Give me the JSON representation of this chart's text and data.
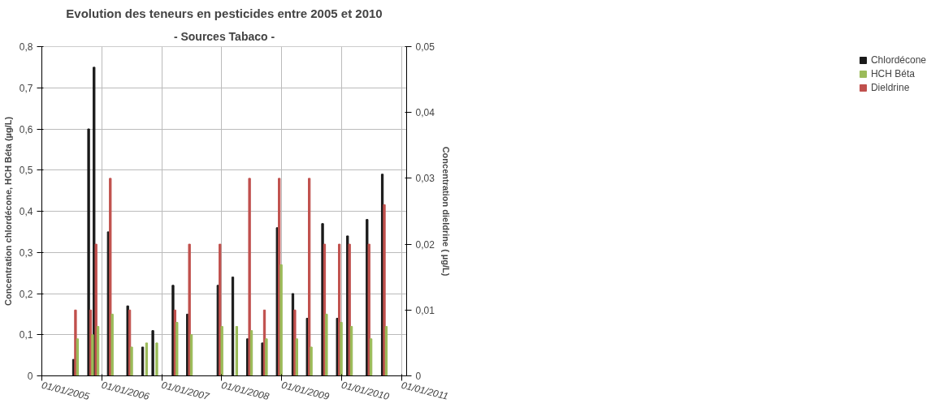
{
  "chart_data": {
    "type": "bar",
    "title": "Evolution des teneurs en pesticides entre 2005 et 2010",
    "subtitle": "- Sources Tabaco -",
    "ylabel": "Concentration chlordécone, HCH Béta (µg/L)",
    "y2label": "Concentration dieldrine ( µg/L)",
    "x": [
      "2005-07-25",
      "2005-10-25",
      "2005-11-27",
      "2006-02-22",
      "2006-06-20",
      "2006-09-19",
      "2006-11-20",
      "2007-03-23",
      "2007-06-19",
      "2007-12-22",
      "2008-03-21",
      "2008-06-19",
      "2008-09-18",
      "2008-12-17",
      "2009-03-22",
      "2009-06-18",
      "2009-09-19",
      "2009-12-18",
      "2010-02-18",
      "2010-06-17",
      "2010-09-18"
    ],
    "series": [
      {
        "name": "Chlordécone",
        "color": "#1a1a1a",
        "values": [
          0.04,
          0.6,
          0.75,
          0.35,
          0.17,
          0.07,
          0.11,
          0.22,
          0.15,
          0.22,
          0.24,
          0.09,
          0.08,
          0.36,
          0.2,
          0.14,
          0.37,
          0.14,
          0.34,
          0.38,
          0.49
        ]
      },
      {
        "name": "HCH Béta",
        "color": "#9bbb59",
        "values": [
          0.09,
          0.1,
          0.12,
          0.15,
          0.07,
          0.08,
          0.08,
          0.13,
          0.1,
          0.12,
          0.12,
          0.11,
          0.09,
          0.27,
          0.09,
          0.07,
          0.15,
          0.13,
          0.12,
          0.09,
          0.12
        ]
      },
      {
        "name": "Dieldrine",
        "color": "#c0504d",
        "axis": "y2",
        "values": [
          0.01,
          0.01,
          0.02,
          0.03,
          0.01,
          null,
          null,
          0.01,
          0.02,
          0.02,
          null,
          0.03,
          0.01,
          0.03,
          0.01,
          0.03,
          0.02,
          0.02,
          0.02,
          0.02,
          0.026
        ]
      }
    ],
    "xlim": [
      "2005-01-01",
      "2011-02-01"
    ],
    "xticks": [
      {
        "value": "2005-01-01",
        "label": "01/01/2005"
      },
      {
        "value": "2006-01-01",
        "label": "01/01/2006"
      },
      {
        "value": "2007-01-01",
        "label": "01/01/2007"
      },
      {
        "value": "2008-01-01",
        "label": "01/01/2008"
      },
      {
        "value": "2009-01-01",
        "label": "01/01/2009"
      },
      {
        "value": "2010-01-01",
        "label": "01/01/2010"
      },
      {
        "value": "2011-01-01",
        "label": "01/01/2011"
      }
    ],
    "ylim": [
      0,
      0.8
    ],
    "yticks": [
      0,
      {
        "value": 0.1,
        "label": "0,1"
      },
      {
        "value": 0.2,
        "label": "0,2"
      },
      {
        "value": 0.3,
        "label": "0,3"
      },
      {
        "value": 0.4,
        "label": "0,4"
      },
      {
        "value": 0.5,
        "label": "0,5"
      },
      {
        "value": 0.6,
        "label": "0,6"
      },
      {
        "value": 0.7,
        "label": "0,7"
      },
      {
        "value": 0.8,
        "label": "0,8"
      }
    ],
    "y2lim": [
      0,
      0.05
    ],
    "y2ticks": [
      0,
      {
        "value": 0.01,
        "label": "0,01"
      },
      {
        "value": 0.02,
        "label": "0,02"
      },
      {
        "value": 0.03,
        "label": "0,03"
      },
      {
        "value": 0.04,
        "label": "0,04"
      },
      {
        "value": 0.05,
        "label": "0,05"
      }
    ],
    "grid": true,
    "legend": "right"
  }
}
